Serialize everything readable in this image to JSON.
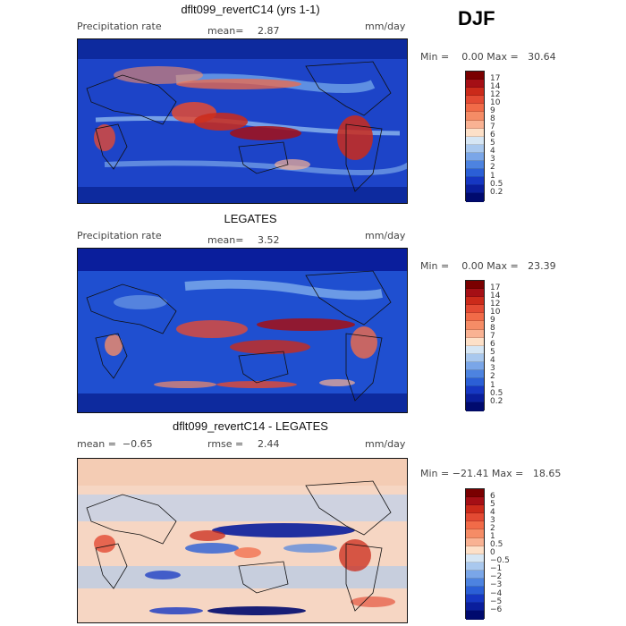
{
  "season": "DJF",
  "panels": [
    {
      "title": "dflt099_revertC14 (yrs 1-1)",
      "left_label": "Precipitation rate",
      "stat_label": "mean=",
      "stat_value": "2.87",
      "units": "mm/day",
      "min_max": "Min =    0.00 Max =   30.64",
      "colorbar": {
        "labels": [
          "17",
          "14",
          "12",
          "10",
          "9",
          "8",
          "7",
          "6",
          "5",
          "4",
          "3",
          "2",
          "1",
          "0.5",
          "0.2"
        ],
        "colors": [
          "#7a0000",
          "#a50f15",
          "#cb2a1a",
          "#e34a33",
          "#f16b48",
          "#f58c66",
          "#f9b293",
          "#fde0c8",
          "#d6e6f4",
          "#a9c8ee",
          "#7aa6e8",
          "#4d83e0",
          "#2b5fd6",
          "#1637c2",
          "#0a1e9c",
          "#000a6e"
        ]
      }
    },
    {
      "title": "LEGATES",
      "left_label": "Precipitation rate",
      "stat_label": "mean=",
      "stat_value": "3.52",
      "units": "mm/day",
      "min_max": "Min =    0.00 Max =   23.39",
      "colorbar": {
        "labels": [
          "17",
          "14",
          "12",
          "10",
          "9",
          "8",
          "7",
          "6",
          "5",
          "4",
          "3",
          "2",
          "1",
          "0.5",
          "0.2"
        ],
        "colors": [
          "#7a0000",
          "#a50f15",
          "#cb2a1a",
          "#e34a33",
          "#f16b48",
          "#f58c66",
          "#f9b293",
          "#fde0c8",
          "#d6e6f4",
          "#a9c8ee",
          "#7aa6e8",
          "#4d83e0",
          "#2b5fd6",
          "#1637c2",
          "#0a1e9c",
          "#000a6e"
        ]
      }
    },
    {
      "title": "dflt099_revertC14 - LEGATES",
      "left_label": "mean =  −0.65",
      "stat_label": "rmse =",
      "stat_value": "2.44",
      "units": "mm/day",
      "min_max": "Min = −21.41 Max =   18.65",
      "colorbar": {
        "labels": [
          "6",
          "5",
          "4",
          "3",
          "2",
          "1",
          "0.5",
          "0",
          "−0.5",
          "−1",
          "−2",
          "−3",
          "−4",
          "−5",
          "−6"
        ],
        "colors": [
          "#7a0000",
          "#a50f15",
          "#cb2a1a",
          "#e34a33",
          "#f16b48",
          "#f58c66",
          "#f9b293",
          "#fde0c8",
          "#d6e6f4",
          "#a9c8ee",
          "#7aa6e8",
          "#4d83e0",
          "#2b5fd6",
          "#1637c2",
          "#0a1e9c",
          "#000a6e"
        ]
      }
    }
  ]
}
